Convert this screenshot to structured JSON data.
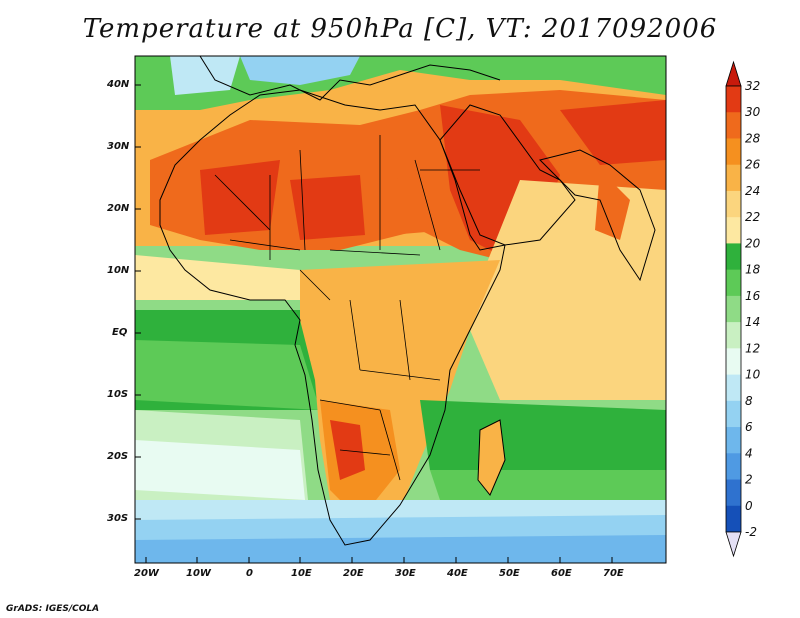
{
  "title": "Temperature at 950hPa [C], VT: 2017092006",
  "map": {
    "lat_labels": [
      "40N",
      "30N",
      "20N",
      "10N",
      "EQ",
      "10S",
      "20S",
      "30S"
    ],
    "lon_labels": [
      "20W",
      "10W",
      "0",
      "10E",
      "20E",
      "30E",
      "40E",
      "50E",
      "60E",
      "70E"
    ]
  },
  "colorbar": {
    "labels": [
      "32",
      "30",
      "28",
      "26",
      "24",
      "22",
      "20",
      "18",
      "16",
      "14",
      "12",
      "10",
      "8",
      "6",
      "4",
      "2",
      "0",
      "-2"
    ],
    "colors": [
      "#c81a0c",
      "#e23a14",
      "#ef6a1c",
      "#f5901f",
      "#f9b347",
      "#fbd57e",
      "#fde8a1",
      "#2fb13c",
      "#5dca57",
      "#8fdb86",
      "#c9f0c2",
      "#e8fbf2",
      "#bfe8f5",
      "#94d2f2",
      "#6eb7ec",
      "#4f9ae3",
      "#2f72cf",
      "#1550b8",
      "#0a2b7a"
    ]
  },
  "credit": "GrADS: IGES/COLA"
}
